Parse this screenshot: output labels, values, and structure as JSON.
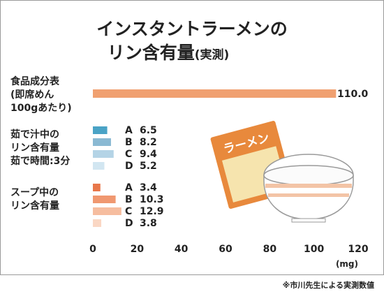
{
  "chart_data": {
    "type": "bar",
    "title": "インスタントラーメンの",
    "title_line2": "リン含有量",
    "title_suffix": "(実測)",
    "xlim": [
      0,
      120
    ],
    "x_ticks": [
      0,
      20,
      40,
      60,
      80,
      100,
      120
    ],
    "x_unit": "(mg)",
    "groups": [
      {
        "label_lines": [
          "食品成分表",
          "(即席めん",
          "100gあたり)"
        ],
        "bars": [
          {
            "name": "",
            "value": 110.0,
            "value_label": "110.0",
            "color": "#f0a070"
          }
        ]
      },
      {
        "label_lines": [
          "茹で汁中の",
          "リン含有量",
          "茹で時間:3分"
        ],
        "bars": [
          {
            "name": "A",
            "value": 6.5,
            "value_label": "6.5",
            "color": "#4aa3c6"
          },
          {
            "name": "B",
            "value": 8.2,
            "value_label": "8.2",
            "color": "#8ab9d3"
          },
          {
            "name": "C",
            "value": 9.4,
            "value_label": "9.4",
            "color": "#b4d4e6"
          },
          {
            "name": "D",
            "value": 5.2,
            "value_label": "5.2",
            "color": "#d2e6f1"
          }
        ]
      },
      {
        "label_lines": [
          "スープ中の",
          "リン含有量"
        ],
        "bars": [
          {
            "name": "A",
            "value": 3.4,
            "value_label": "3.4",
            "color": "#e8774a"
          },
          {
            "name": "B",
            "value": 10.3,
            "value_label": "10.3",
            "color": "#f09870"
          },
          {
            "name": "C",
            "value": 12.9,
            "value_label": "12.9",
            "color": "#f6bd9f"
          },
          {
            "name": "D",
            "value": 3.8,
            "value_label": "3.8",
            "color": "#fad7c4"
          }
        ]
      }
    ]
  },
  "illustration": {
    "package_label": "ラーメン",
    "package_color": "#e8893c",
    "package_inner_color": "#f6e4ae"
  },
  "footnote": "※市川先生による実測数値"
}
